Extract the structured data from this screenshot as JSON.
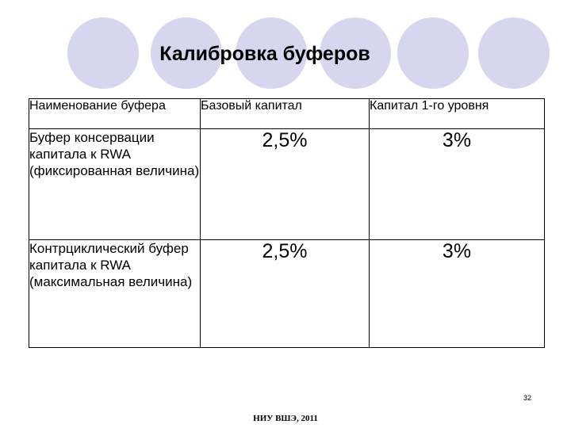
{
  "slide": {
    "title": "Калибровка буферов",
    "colors": {
      "circle_fill": "#d6d6ee",
      "circle_stroke": "#ffffff"
    }
  },
  "table": {
    "headers": [
      "Наименование буфера",
      "Базовый капитал",
      "Капитал 1-го уровня"
    ],
    "rows": [
      {
        "name": "Буфер консервации капитала к RWA (фиксированная величина)",
        "base": "2,5%",
        "tier1": "3%"
      },
      {
        "name": "Контрциклический буфер капитала к RWA (максимальная величина)",
        "base": "2,5%",
        "tier1": "3%"
      }
    ]
  },
  "page_number": "32",
  "footer": "НИУ ВШЭ, 2011"
}
